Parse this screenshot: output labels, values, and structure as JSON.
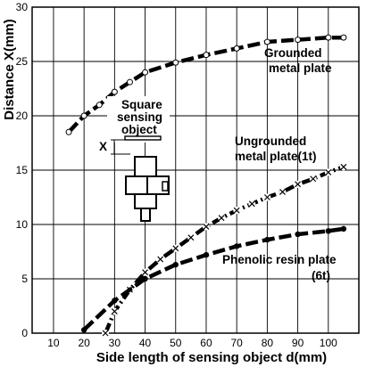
{
  "chart_data": {
    "type": "line",
    "xlabel": "Side length of sensing object d(mm)",
    "ylabel": "Distance X(mm)",
    "xlim": [
      3,
      110
    ],
    "ylim": [
      0,
      30
    ],
    "x_ticks": [
      10,
      20,
      30,
      40,
      50,
      60,
      70,
      80,
      90,
      100
    ],
    "y_ticks": [
      0,
      5,
      10,
      15,
      20,
      25,
      30
    ],
    "grid": true,
    "series": [
      {
        "name": "Grounded metal plate",
        "style": "dashed-open-circle",
        "x": [
          15,
          20,
          25,
          30,
          35,
          40,
          50,
          60,
          70,
          80,
          90,
          100,
          105
        ],
        "y": [
          18.5,
          20.0,
          21.0,
          22.2,
          23.1,
          24.0,
          24.9,
          25.6,
          26.2,
          26.8,
          27.0,
          27.2,
          27.2
        ]
      },
      {
        "name": "Ungrounded metal plate(1t)",
        "style": "dashdot-x",
        "x": [
          27,
          30,
          35,
          40,
          45,
          50,
          55,
          60,
          65,
          70,
          75,
          80,
          85,
          90,
          95,
          100,
          105
        ],
        "y": [
          0,
          2.0,
          4.0,
          5.6,
          6.8,
          7.8,
          8.8,
          9.8,
          10.6,
          11.3,
          11.9,
          12.5,
          13.0,
          13.7,
          14.2,
          14.8,
          15.3
        ]
      },
      {
        "name": "Phenolic resin plate (6t)",
        "style": "dashed-filled-circle",
        "x": [
          20,
          30,
          40,
          50,
          60,
          70,
          80,
          90,
          100,
          105
        ],
        "y": [
          0.3,
          3.0,
          5.0,
          6.3,
          7.2,
          8.0,
          8.6,
          9.1,
          9.4,
          9.6
        ]
      }
    ],
    "annotations": {
      "grounded": [
        "Grounded",
        "metal plate"
      ],
      "ungrounded": [
        "Ungrounded",
        "metal plate(1t)"
      ],
      "phenolic": [
        "Phenolic resin plate",
        "(6t)"
      ],
      "inset_label": [
        "Square",
        "sensing",
        "object"
      ],
      "inset_x": "X"
    }
  }
}
